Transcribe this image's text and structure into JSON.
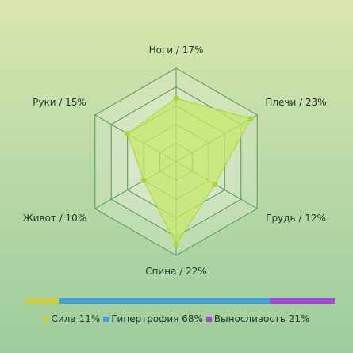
{
  "chart_data": {
    "type": "radar",
    "axes": [
      {
        "label": "Ноги / 17%",
        "value": 17
      },
      {
        "label": "Плечи / 23%",
        "value": 23
      },
      {
        "label": "Грудь / 12%",
        "value": 12
      },
      {
        "label": "Спина / 22%",
        "value": 22
      },
      {
        "label": "Живот / 10%",
        "value": 10
      },
      {
        "label": "Руки / 15%",
        "value": 15
      }
    ],
    "rmax": 25,
    "rings": 5,
    "grid": true,
    "legend_position": "bottom",
    "colors": {
      "fill": "#c6e86a",
      "stroke": "#a6d83a",
      "grid": "#4f9a54",
      "ring_fill": "#eaf2dc"
    },
    "distribution": [
      {
        "label": "Сила 11%",
        "value": 11,
        "color": "#c9cf3b"
      },
      {
        "label": "Гипертрофия 68%",
        "value": 68,
        "color": "#3f9fd9"
      },
      {
        "label": "Выносливость 21%",
        "value": 21,
        "color": "#a547d6"
      }
    ]
  }
}
